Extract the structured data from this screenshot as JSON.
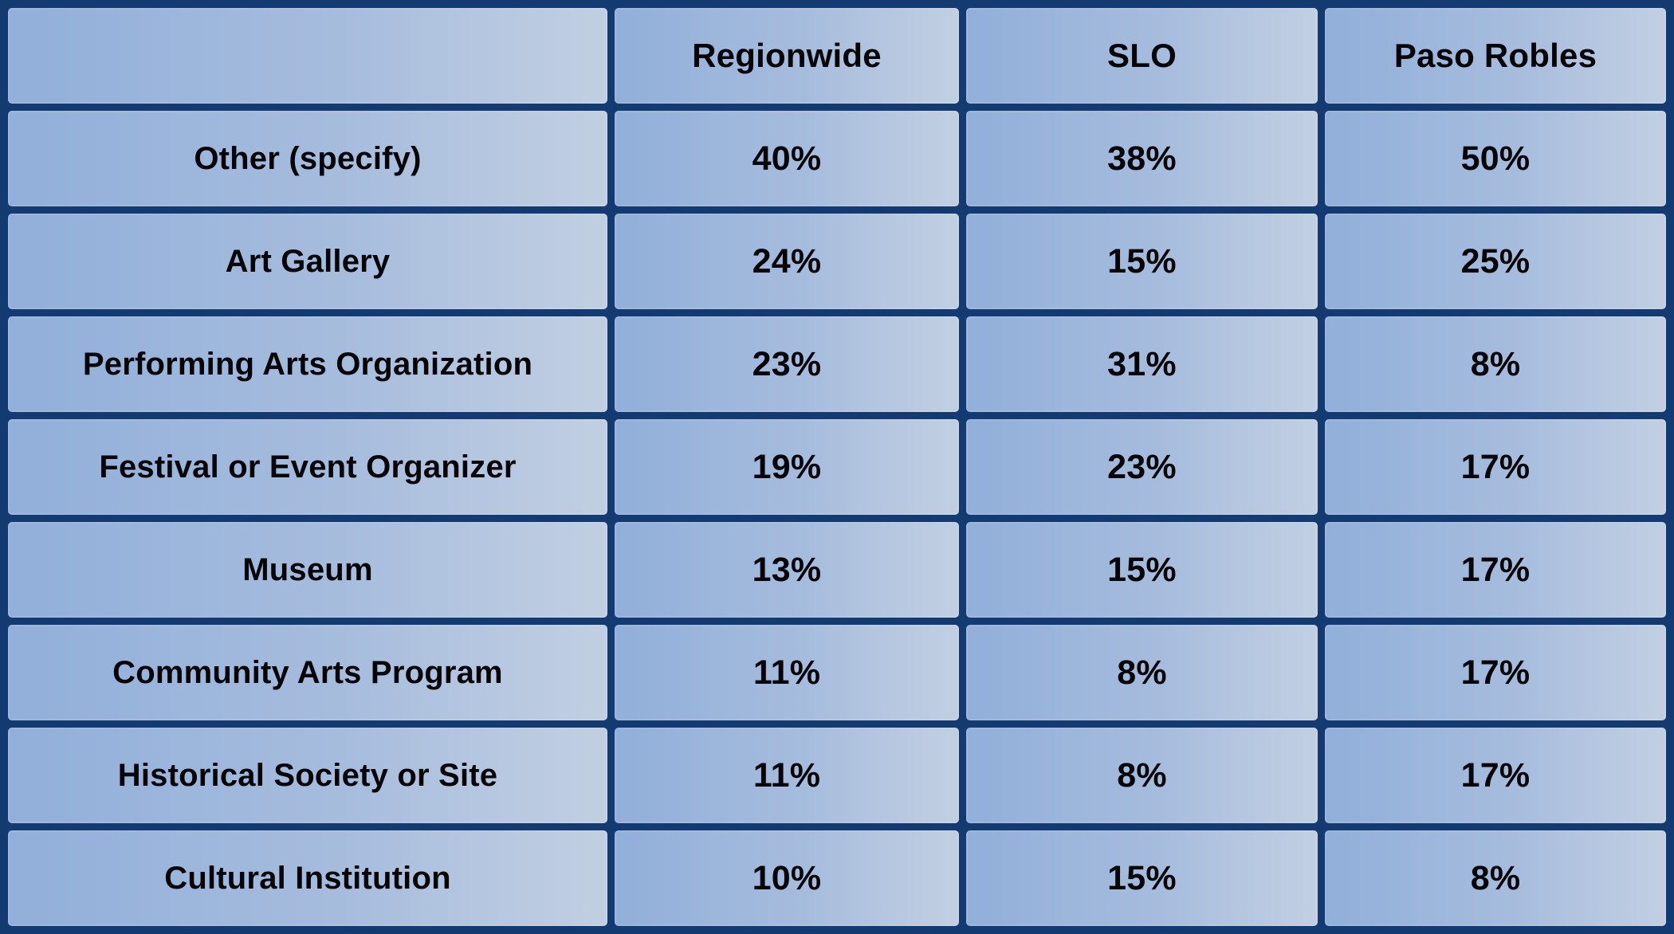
{
  "colors": {
    "border_navy": "#143a72",
    "cell_gradient_left": "#91afda",
    "cell_gradient_right": "#c2cfe2",
    "text": "#050508"
  },
  "table": {
    "corner_label": "",
    "columns": [
      "Regionwide",
      "SLO",
      "Paso Robles"
    ],
    "rows": [
      {
        "label": "Other (specify)",
        "values": [
          "40%",
          "38%",
          "50%"
        ]
      },
      {
        "label": "Art Gallery",
        "values": [
          "24%",
          "15%",
          "25%"
        ]
      },
      {
        "label": "Performing Arts Organization",
        "values": [
          "23%",
          "31%",
          "8%"
        ]
      },
      {
        "label": "Festival or Event Organizer",
        "values": [
          "19%",
          "23%",
          "17%"
        ]
      },
      {
        "label": "Museum",
        "values": [
          "13%",
          "15%",
          "17%"
        ]
      },
      {
        "label": "Community Arts Program",
        "values": [
          "11%",
          "8%",
          "17%"
        ]
      },
      {
        "label": "Historical Society or Site",
        "values": [
          "11%",
          "8%",
          "17%"
        ]
      },
      {
        "label": "Cultural Institution",
        "values": [
          "10%",
          "15%",
          "8%"
        ]
      }
    ]
  },
  "chart_data": {
    "type": "table",
    "title": "",
    "categories": [
      "Other (specify)",
      "Art Gallery",
      "Performing Arts Organization",
      "Festival or Event Organizer",
      "Museum",
      "Community Arts Program",
      "Historical Society or Site",
      "Cultural Institution"
    ],
    "series": [
      {
        "name": "Regionwide",
        "values": [
          40,
          24,
          23,
          19,
          13,
          11,
          11,
          10
        ]
      },
      {
        "name": "SLO",
        "values": [
          38,
          15,
          31,
          23,
          15,
          8,
          8,
          15
        ]
      },
      {
        "name": "Paso Robles",
        "values": [
          50,
          25,
          8,
          17,
          17,
          17,
          17,
          8
        ]
      }
    ],
    "units": "percent",
    "layout": "rows are organization types, columns are regions, header row on top"
  }
}
